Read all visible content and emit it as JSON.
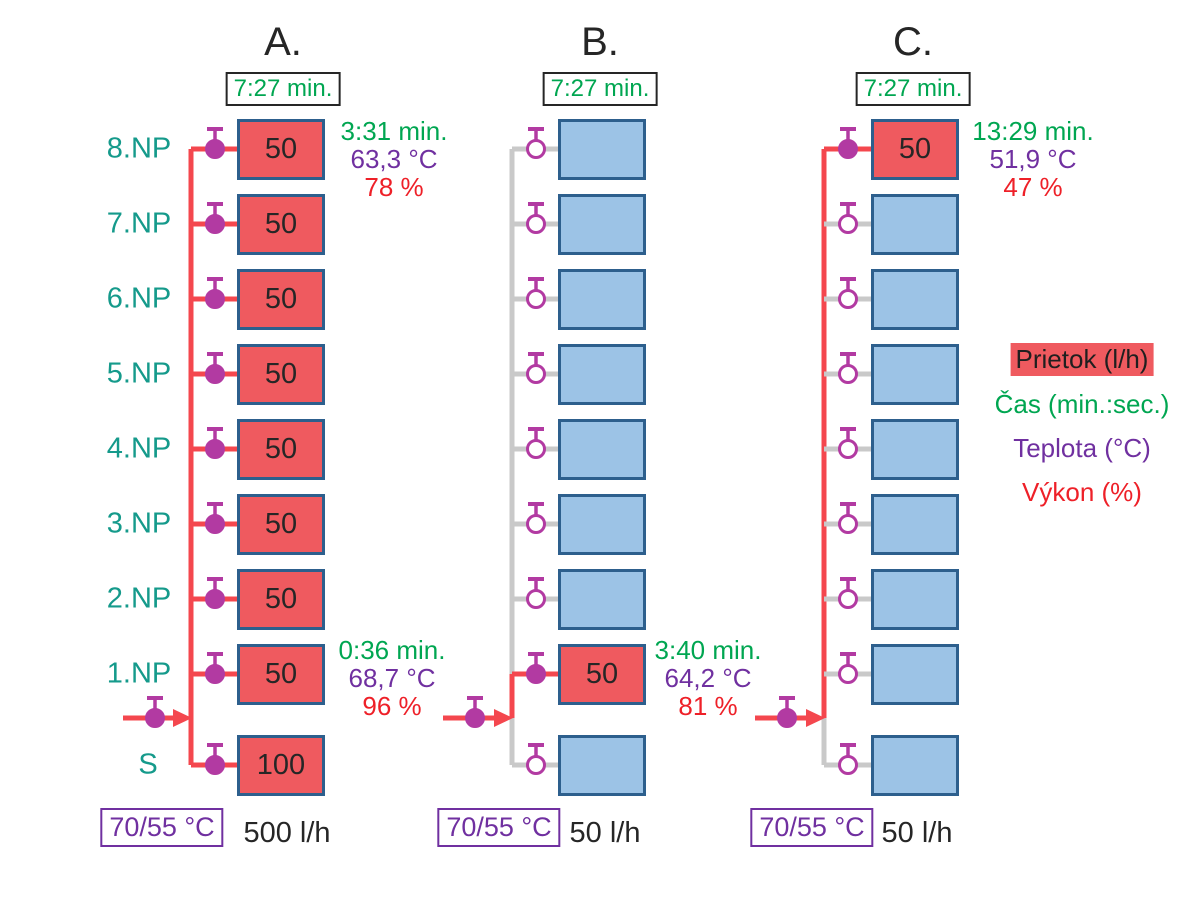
{
  "diagram": {
    "floors": [
      "8.NP",
      "7.NP",
      "6.NP",
      "5.NP",
      "4.NP",
      "3.NP",
      "2.NP",
      "1.NP"
    ],
    "basement_label": "S",
    "columns": [
      {
        "title": "A.",
        "circulation_time": "7:27 min.",
        "supply_return_temp": "70/55 °C",
        "total_flow": "500 l/h",
        "radiators": [
          {
            "floor": "8.NP",
            "flow": "50",
            "active": true
          },
          {
            "floor": "7.NP",
            "flow": "50",
            "active": true
          },
          {
            "floor": "6.NP",
            "flow": "50",
            "active": true
          },
          {
            "floor": "5.NP",
            "flow": "50",
            "active": true
          },
          {
            "floor": "4.NP",
            "flow": "50",
            "active": true
          },
          {
            "floor": "3.NP",
            "flow": "50",
            "active": true
          },
          {
            "floor": "2.NP",
            "flow": "50",
            "active": true
          },
          {
            "floor": "1.NP",
            "flow": "50",
            "active": true
          },
          {
            "floor": "S",
            "flow": "100",
            "active": true
          }
        ],
        "annotations": [
          {
            "position": "top",
            "time": "3:31 min.",
            "temperature": "63,3 °C",
            "power": "78 %"
          },
          {
            "position": "bottom",
            "time": "0:36 min.",
            "temperature": "68,7 °C",
            "power": "96 %"
          }
        ]
      },
      {
        "title": "B.",
        "circulation_time": "7:27 min.",
        "supply_return_temp": "70/55 °C",
        "total_flow": "50 l/h",
        "radiators": [
          {
            "floor": "8.NP",
            "flow": "",
            "active": false
          },
          {
            "floor": "7.NP",
            "flow": "",
            "active": false
          },
          {
            "floor": "6.NP",
            "flow": "",
            "active": false
          },
          {
            "floor": "5.NP",
            "flow": "",
            "active": false
          },
          {
            "floor": "4.NP",
            "flow": "",
            "active": false
          },
          {
            "floor": "3.NP",
            "flow": "",
            "active": false
          },
          {
            "floor": "2.NP",
            "flow": "",
            "active": false
          },
          {
            "floor": "1.NP",
            "flow": "50",
            "active": true
          },
          {
            "floor": "S",
            "flow": "",
            "active": false
          }
        ],
        "annotations": [
          {
            "position": "bottom",
            "time": "3:40 min.",
            "temperature": "64,2 °C",
            "power": "81 %"
          }
        ]
      },
      {
        "title": "C.",
        "circulation_time": "7:27 min.",
        "supply_return_temp": "70/55 °C",
        "total_flow": "50 l/h",
        "radiators": [
          {
            "floor": "8.NP",
            "flow": "50",
            "active": true
          },
          {
            "floor": "7.NP",
            "flow": "",
            "active": false
          },
          {
            "floor": "6.NP",
            "flow": "",
            "active": false
          },
          {
            "floor": "5.NP",
            "flow": "",
            "active": false
          },
          {
            "floor": "4.NP",
            "flow": "",
            "active": false
          },
          {
            "floor": "3.NP",
            "flow": "",
            "active": false
          },
          {
            "floor": "2.NP",
            "flow": "",
            "active": false
          },
          {
            "floor": "1.NP",
            "flow": "",
            "active": false
          },
          {
            "floor": "S",
            "flow": "",
            "active": false
          }
        ],
        "annotations": [
          {
            "position": "top",
            "time": "13:29 min.",
            "temperature": "51,9 °C",
            "power": "47 %"
          }
        ]
      }
    ],
    "legend": {
      "flow": "Prietok (l/h)",
      "time": "Čas (min.:sec.)",
      "temp": "Teplota (°C)",
      "power": "Výkon (%)"
    },
    "colors": {
      "flow_red": "#ef5a5f",
      "time_green": "#00a651",
      "temp_purple": "#7030a0",
      "power_red": "#ee2028",
      "pipe_red": "#f4474e",
      "pipe_gray": "#c9c9c9",
      "valve_magenta": "#b23aa2",
      "radiator_border_blue": "#2d5f8d",
      "radiator_cold_blue": "#9cc3e6",
      "floor_teal": "#159a8b"
    }
  }
}
